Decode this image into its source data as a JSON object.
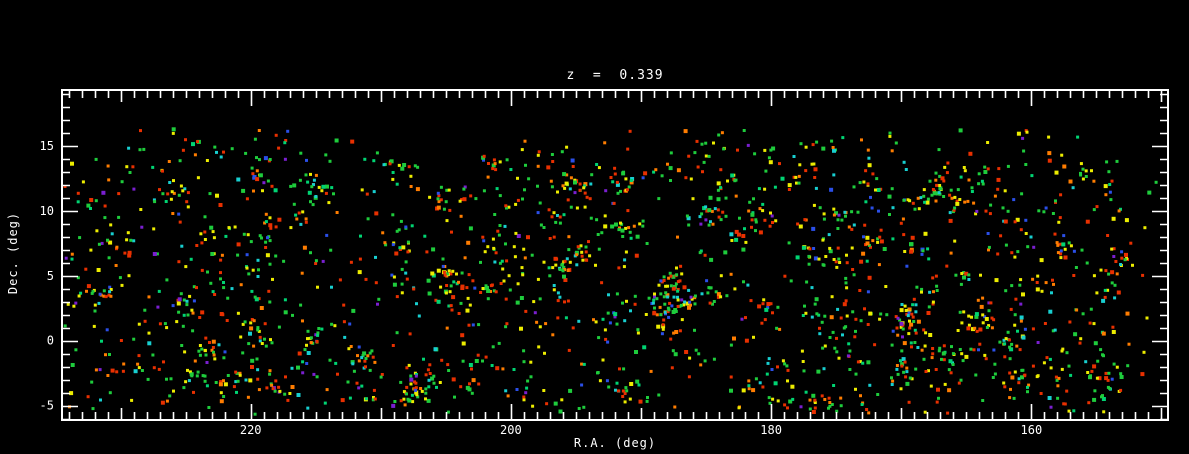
{
  "figure": {
    "background": "#000000",
    "frame_color": "#ffffff",
    "text_color": "#ffffff"
  },
  "chart_data": {
    "type": "scatter",
    "title": "z  =  0.339",
    "xlabel": "R.A. (deg)",
    "ylabel": "Dec. (deg)",
    "x_axis": {
      "ticks": [
        220,
        200,
        180,
        160
      ],
      "lim": [
        234.5,
        149.5
      ],
      "reversed": true,
      "minor_step": 1,
      "mid_step": 10,
      "major_step": 20
    },
    "y_axis": {
      "ticks": [
        15,
        10,
        5,
        0,
        -5
      ],
      "lim": [
        -6.1,
        19.3
      ],
      "minor_step": 1,
      "major_step": 5
    },
    "points_spec": {
      "estimated_count": 2300,
      "seed": 1337,
      "marker_px": 3,
      "ra_range": [
        150.2,
        234.3
      ],
      "dec_range": [
        -5.7,
        16.3
      ],
      "cluster_fraction": 0.55,
      "n_clusters": 150,
      "cluster_sigma_deg": 0.5,
      "colors": [
        {
          "hex": "#e83000",
          "weight": 0.22
        },
        {
          "hex": "#ff7d00",
          "weight": 0.1
        },
        {
          "hex": "#eded00",
          "weight": 0.2
        },
        {
          "hex": "#1ecc3c",
          "weight": 0.28
        },
        {
          "hex": "#00d473",
          "weight": 0.06
        },
        {
          "hex": "#18cfd0",
          "weight": 0.07
        },
        {
          "hex": "#2b4fe8",
          "weight": 0.04
        },
        {
          "hex": "#7a1fd0",
          "weight": 0.03
        }
      ]
    }
  }
}
